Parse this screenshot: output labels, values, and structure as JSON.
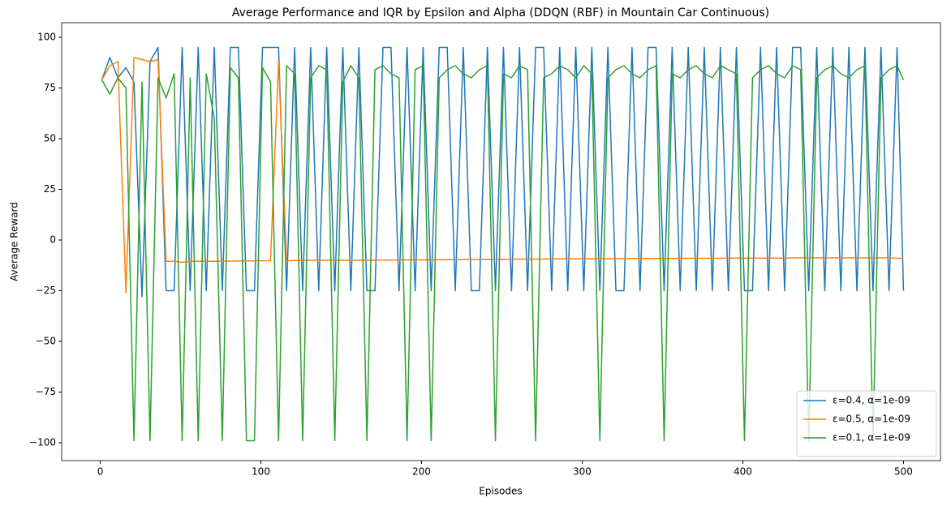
{
  "chart_data": {
    "type": "line",
    "title": "Average Performance and IQR by Epsilon and Alpha (DDQN (RBF) in Mountain Car Continuous)",
    "x_label": "Episodes",
    "y_label": "Average Reward",
    "xlim": [
      -24,
      523
    ],
    "ylim": [
      -108.8,
      107.2
    ],
    "xticks": [
      0,
      100,
      200,
      300,
      400,
      500
    ],
    "yticks": [
      {
        "value": -100,
        "label": "−100"
      },
      {
        "value": -75,
        "label": "−75"
      },
      {
        "value": -50,
        "label": "−50"
      },
      {
        "value": -25,
        "label": "−25"
      },
      0,
      25,
      50,
      75,
      100
    ],
    "legend": "lower right",
    "x": [
      1,
      6,
      11,
      16,
      21,
      26,
      31,
      36,
      41,
      46,
      51,
      56,
      61,
      66,
      71,
      76,
      81,
      86,
      91,
      96,
      101,
      106,
      111,
      116,
      121,
      126,
      131,
      136,
      141,
      146,
      151,
      156,
      161,
      166,
      171,
      176,
      181,
      186,
      191,
      196,
      201,
      206,
      211,
      216,
      221,
      226,
      231,
      236,
      241,
      246,
      251,
      256,
      261,
      266,
      271,
      276,
      281,
      286,
      291,
      296,
      301,
      306,
      311,
      316,
      321,
      326,
      331,
      336,
      341,
      346,
      351,
      356,
      361,
      366,
      371,
      376,
      381,
      386,
      391,
      396,
      401,
      406,
      411,
      416,
      421,
      426,
      431,
      436,
      441,
      446,
      451,
      456,
      461,
      466,
      471,
      476,
      481,
      486,
      491,
      496,
      500
    ],
    "series": [
      {
        "name": "ε=0.4, α=1e-09",
        "color": "#1f77b4",
        "values": [
          79,
          90,
          80,
          85,
          78,
          -28,
          88,
          95,
          -25,
          -25,
          95,
          -25,
          95,
          -25,
          95,
          -25,
          95,
          95,
          -25,
          -25,
          95,
          95,
          95,
          -25,
          95,
          -25,
          95,
          -25,
          95,
          -25,
          95,
          -25,
          95,
          -25,
          -25,
          95,
          95,
          -25,
          95,
          -25,
          95,
          -25,
          95,
          95,
          -25,
          95,
          -25,
          -25,
          95,
          -25,
          95,
          -25,
          95,
          -25,
          95,
          95,
          -25,
          95,
          -25,
          95,
          -25,
          95,
          -25,
          95,
          -25,
          -25,
          95,
          -25,
          95,
          95,
          -25,
          95,
          -25,
          95,
          -25,
          95,
          -25,
          95,
          -25,
          95,
          -25,
          -25,
          95,
          -25,
          95,
          -25,
          95,
          95,
          -25,
          95,
          -25,
          95,
          -25,
          95,
          -25,
          95,
          -25,
          95,
          -25,
          95,
          -25
        ]
      },
      {
        "name": "ε=0.5, α=1e-09",
        "color": "#ff7f0e",
        "values": [
          79,
          86,
          88,
          -26,
          90,
          89,
          88,
          89,
          -10.5,
          -10.5,
          -11,
          -10.5,
          -10.5,
          -10.5,
          -10.5,
          -10.4,
          -10.4,
          -10.3,
          -10.3,
          -10.3,
          -10.2,
          -10.2,
          88,
          -10.2,
          -10.1,
          -10.1,
          -10,
          -10,
          -10,
          -10,
          -10,
          -10,
          -10,
          -10,
          -10,
          -9.9,
          -9.9,
          -9.9,
          -9.8,
          -9.8,
          -9.8,
          -9.8,
          -9.7,
          -9.7,
          -9.7,
          -9.6,
          -9.6,
          -9.6,
          -9.5,
          -9.5,
          -9.5,
          -9.5,
          -9.4,
          -9.4,
          -9.4,
          -9.4,
          -9.3,
          -9.3,
          -9.3,
          -9.3,
          -9.3,
          -9.2,
          -9.2,
          -9.2,
          -9.2,
          -9.2,
          -9.1,
          -9.1,
          -9.1,
          -9.1,
          -9.1,
          -9.1,
          -9,
          -9,
          -9,
          -9,
          -9,
          -9,
          -8.9,
          -8.9,
          -8.9,
          -8.9,
          -8.9,
          -8.9,
          -8.9,
          -8.9,
          -8.8,
          -8.8,
          -8.8,
          -8.8,
          -8.8,
          -8.8,
          -8.8,
          -8.8,
          -8.8,
          -8.8,
          -8.8,
          -8.8,
          -8.8,
          -9,
          -9
        ]
      },
      {
        "name": "ε=0.1, α=1e-09",
        "color": "#2ca02c",
        "values": [
          79,
          72,
          80,
          75,
          -99,
          78,
          -99,
          80,
          70,
          82,
          -99,
          80,
          -99,
          82,
          60,
          -99,
          85,
          80,
          -99,
          -99,
          85,
          78,
          -99,
          86,
          82,
          -99,
          80,
          86,
          84,
          -99,
          78,
          86,
          80,
          -99,
          84,
          86,
          82,
          80,
          -99,
          84,
          86,
          -99,
          80,
          84,
          86,
          82,
          80,
          84,
          86,
          -99,
          82,
          80,
          86,
          84,
          -99,
          80,
          82,
          86,
          84,
          80,
          86,
          82,
          -99,
          80,
          84,
          86,
          82,
          80,
          84,
          86,
          -99,
          82,
          80,
          84,
          86,
          82,
          80,
          86,
          84,
          82,
          -99,
          80,
          84,
          86,
          82,
          80,
          86,
          84,
          -99,
          80,
          84,
          86,
          82,
          80,
          84,
          86,
          -99,
          80,
          84,
          86,
          79
        ]
      }
    ]
  }
}
